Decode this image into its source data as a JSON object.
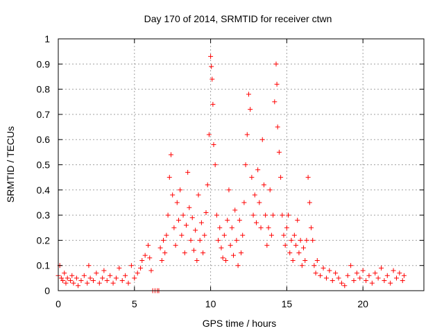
{
  "chart_data": {
    "type": "scatter",
    "title": "Day 170 of 2014, SRMTID for receiver ctwn",
    "xlabel": "GPS time / hours",
    "ylabel": "SRMTID / TECUs",
    "xlim": [
      0,
      24
    ],
    "ylim": [
      0,
      1
    ],
    "xticks": [
      0,
      5,
      10,
      15,
      20
    ],
    "xtick_labels": [
      "0",
      "5",
      "10",
      "15",
      "20"
    ],
    "yticks": [
      0,
      0.1,
      0.2,
      0.3,
      0.4,
      0.5,
      0.6,
      0.7,
      0.8,
      0.9,
      1
    ],
    "ytick_labels": [
      "0",
      "0.1",
      "0.2",
      "0.3",
      "0.4",
      "0.5",
      "0.6",
      "0.7",
      "0.8",
      "0.9",
      "1"
    ],
    "grid": true,
    "marker": "plus",
    "series": [
      {
        "name": "SRMTID",
        "color": "#ff0000",
        "points": [
          [
            0.0,
            0.06
          ],
          [
            0.1,
            0.1
          ],
          [
            0.2,
            0.05
          ],
          [
            0.3,
            0.04
          ],
          [
            0.4,
            0.07
          ],
          [
            0.5,
            0.03
          ],
          [
            0.6,
            0.05
          ],
          [
            0.8,
            0.04
          ],
          [
            0.9,
            0.06
          ],
          [
            1.0,
            0.03
          ],
          [
            1.2,
            0.05
          ],
          [
            1.3,
            0.02
          ],
          [
            1.5,
            0.04
          ],
          [
            1.7,
            0.06
          ],
          [
            1.9,
            0.03
          ],
          [
            2.0,
            0.1
          ],
          [
            2.1,
            0.05
          ],
          [
            2.3,
            0.04
          ],
          [
            2.5,
            0.07
          ],
          [
            2.7,
            0.03
          ],
          [
            2.9,
            0.05
          ],
          [
            3.0,
            0.08
          ],
          [
            3.2,
            0.04
          ],
          [
            3.4,
            0.06
          ],
          [
            3.6,
            0.03
          ],
          [
            3.8,
            0.05
          ],
          [
            4.0,
            0.09
          ],
          [
            4.2,
            0.04
          ],
          [
            4.4,
            0.06
          ],
          [
            4.6,
            0.03
          ],
          [
            4.8,
            0.1
          ],
          [
            5.0,
            0.05
          ],
          [
            5.2,
            0.07
          ],
          [
            5.4,
            0.09
          ],
          [
            5.5,
            0.12
          ],
          [
            5.7,
            0.14
          ],
          [
            5.9,
            0.18
          ],
          [
            6.0,
            0.13
          ],
          [
            6.1,
            0.08
          ],
          [
            6.2,
            0.0
          ],
          [
            6.35,
            0.0
          ],
          [
            6.5,
            0.0
          ],
          [
            6.6,
            0.0
          ],
          [
            6.7,
            0.17
          ],
          [
            6.8,
            0.12
          ],
          [
            6.9,
            0.2
          ],
          [
            7.0,
            0.15
          ],
          [
            7.1,
            0.22
          ],
          [
            7.2,
            0.3
          ],
          [
            7.3,
            0.45
          ],
          [
            7.4,
            0.54
          ],
          [
            7.5,
            0.38
          ],
          [
            7.6,
            0.25
          ],
          [
            7.7,
            0.18
          ],
          [
            7.8,
            0.35
          ],
          [
            7.9,
            0.28
          ],
          [
            8.0,
            0.4
          ],
          [
            8.1,
            0.22
          ],
          [
            8.2,
            0.3
          ],
          [
            8.3,
            0.15
          ],
          [
            8.4,
            0.26
          ],
          [
            8.5,
            0.47
          ],
          [
            8.6,
            0.33
          ],
          [
            8.7,
            0.2
          ],
          [
            8.8,
            0.29
          ],
          [
            8.9,
            0.16
          ],
          [
            9.0,
            0.24
          ],
          [
            9.1,
            0.12
          ],
          [
            9.2,
            0.38
          ],
          [
            9.3,
            0.2
          ],
          [
            9.4,
            0.27
          ],
          [
            9.5,
            0.15
          ],
          [
            9.6,
            0.22
          ],
          [
            9.7,
            0.31
          ],
          [
            9.8,
            0.42
          ],
          [
            9.9,
            0.62
          ],
          [
            10.0,
            0.93
          ],
          [
            10.05,
            0.89
          ],
          [
            10.1,
            0.84
          ],
          [
            10.15,
            0.74
          ],
          [
            10.2,
            0.58
          ],
          [
            10.3,
            0.5
          ],
          [
            10.4,
            0.3
          ],
          [
            10.5,
            0.2
          ],
          [
            10.6,
            0.25
          ],
          [
            10.7,
            0.17
          ],
          [
            10.8,
            0.13
          ],
          [
            10.9,
            0.22
          ],
          [
            11.0,
            0.12
          ],
          [
            11.1,
            0.28
          ],
          [
            11.2,
            0.4
          ],
          [
            11.3,
            0.18
          ],
          [
            11.4,
            0.25
          ],
          [
            11.5,
            0.14
          ],
          [
            11.6,
            0.32
          ],
          [
            11.7,
            0.2
          ],
          [
            11.8,
            0.1
          ],
          [
            11.9,
            0.28
          ],
          [
            12.0,
            0.15
          ],
          [
            12.1,
            0.22
          ],
          [
            12.2,
            0.35
          ],
          [
            12.3,
            0.5
          ],
          [
            12.4,
            0.62
          ],
          [
            12.5,
            0.78
          ],
          [
            12.6,
            0.72
          ],
          [
            12.7,
            0.45
          ],
          [
            12.8,
            0.3
          ],
          [
            12.9,
            0.38
          ],
          [
            13.0,
            0.27
          ],
          [
            13.1,
            0.48
          ],
          [
            13.2,
            0.35
          ],
          [
            13.3,
            0.25
          ],
          [
            13.4,
            0.6
          ],
          [
            13.5,
            0.42
          ],
          [
            13.6,
            0.3
          ],
          [
            13.7,
            0.18
          ],
          [
            13.8,
            0.25
          ],
          [
            13.9,
            0.4
          ],
          [
            14.0,
            0.22
          ],
          [
            14.1,
            0.3
          ],
          [
            14.2,
            0.75
          ],
          [
            14.3,
            0.9
          ],
          [
            14.35,
            0.82
          ],
          [
            14.4,
            0.65
          ],
          [
            14.5,
            0.55
          ],
          [
            14.6,
            0.45
          ],
          [
            14.7,
            0.3
          ],
          [
            14.8,
            0.22
          ],
          [
            14.9,
            0.18
          ],
          [
            15.0,
            0.25
          ],
          [
            15.1,
            0.3
          ],
          [
            15.2,
            0.15
          ],
          [
            15.3,
            0.2
          ],
          [
            15.4,
            0.12
          ],
          [
            15.5,
            0.22
          ],
          [
            15.6,
            0.18
          ],
          [
            15.7,
            0.28
          ],
          [
            15.8,
            0.15
          ],
          [
            15.9,
            0.2
          ],
          [
            16.0,
            0.1
          ],
          [
            16.1,
            0.17
          ],
          [
            16.2,
            0.12
          ],
          [
            16.3,
            0.2
          ],
          [
            16.4,
            0.45
          ],
          [
            16.5,
            0.35
          ],
          [
            16.6,
            0.25
          ],
          [
            16.7,
            0.2
          ],
          [
            16.8,
            0.1
          ],
          [
            16.9,
            0.07
          ],
          [
            17.0,
            0.12
          ],
          [
            17.2,
            0.06
          ],
          [
            17.4,
            0.09
          ],
          [
            17.6,
            0.05
          ],
          [
            17.8,
            0.08
          ],
          [
            18.0,
            0.04
          ],
          [
            18.2,
            0.07
          ],
          [
            18.4,
            0.05
          ],
          [
            18.6,
            0.03
          ],
          [
            18.8,
            0.02
          ],
          [
            19.0,
            0.06
          ],
          [
            19.2,
            0.1
          ],
          [
            19.4,
            0.04
          ],
          [
            19.6,
            0.07
          ],
          [
            19.8,
            0.05
          ],
          [
            20.0,
            0.08
          ],
          [
            20.2,
            0.04
          ],
          [
            20.4,
            0.06
          ],
          [
            20.6,
            0.03
          ],
          [
            20.8,
            0.07
          ],
          [
            21.0,
            0.05
          ],
          [
            21.2,
            0.09
          ],
          [
            21.4,
            0.04
          ],
          [
            21.6,
            0.06
          ],
          [
            21.8,
            0.03
          ],
          [
            22.0,
            0.08
          ],
          [
            22.2,
            0.05
          ],
          [
            22.4,
            0.07
          ],
          [
            22.6,
            0.04
          ],
          [
            22.7,
            0.06
          ]
        ]
      }
    ]
  }
}
